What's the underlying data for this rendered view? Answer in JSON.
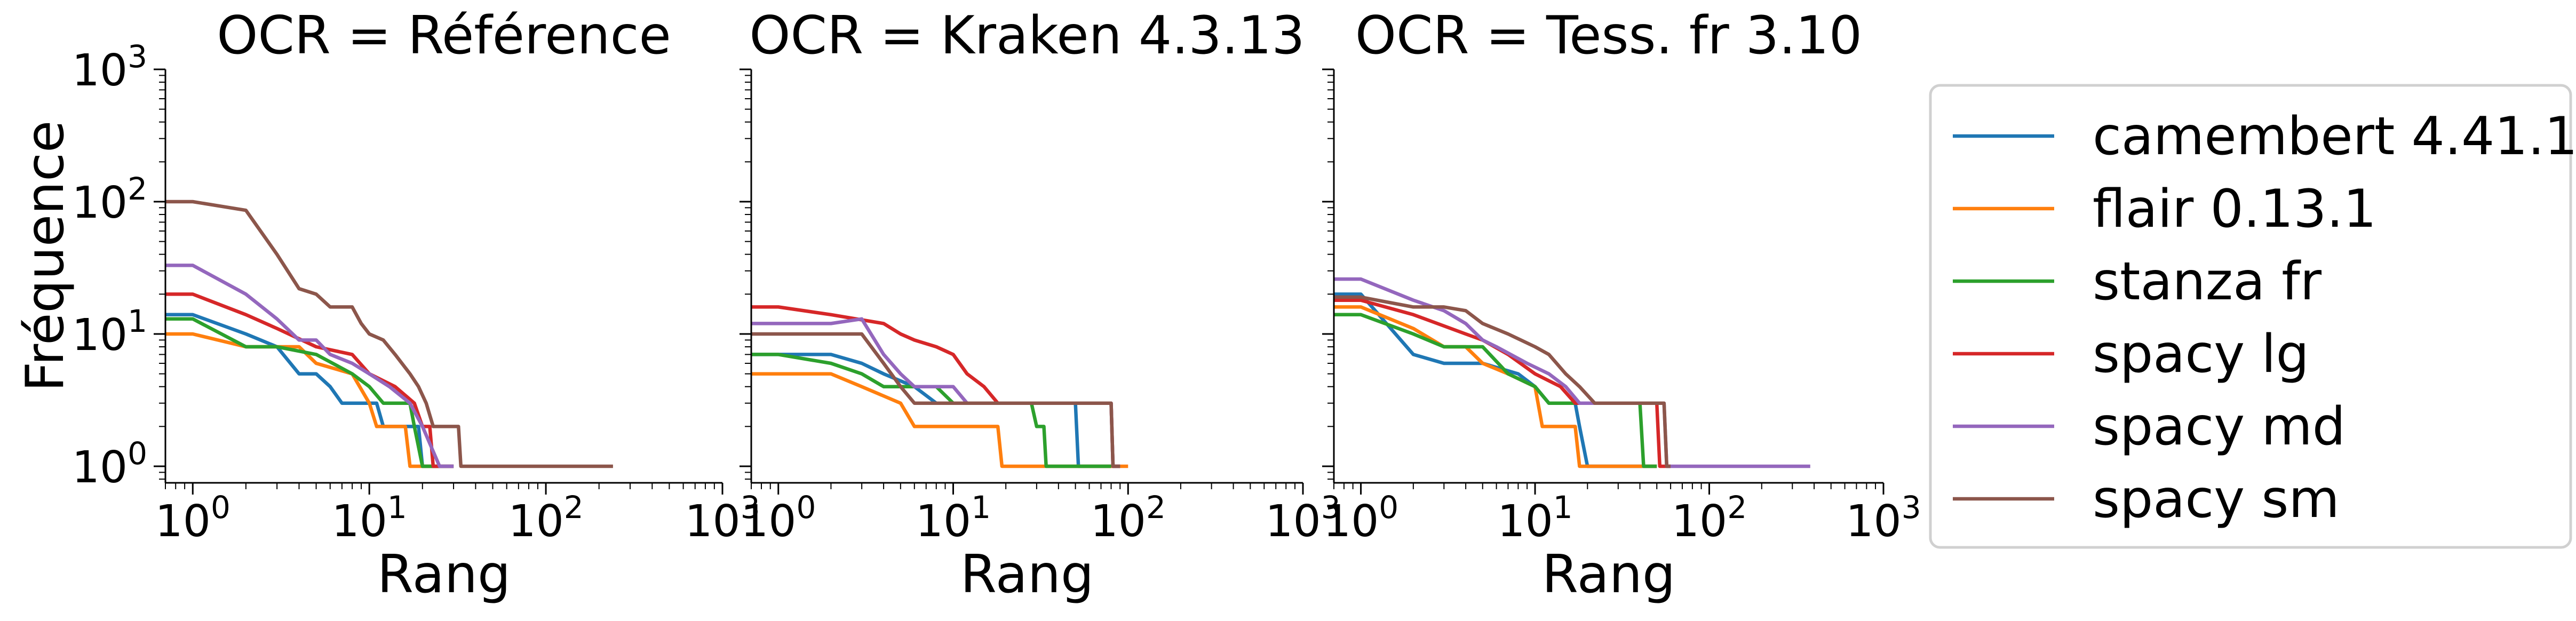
{
  "colors": {
    "camembert 4.41.1": "#1f77b4",
    "flair 0.13.1": "#ff7f0e",
    "stanza fr": "#2ca02c",
    "spacy lg": "#d62728",
    "spacy md": "#9467bd",
    "spacy sm": "#8c564b"
  },
  "ylabel": "Fréquence",
  "legend": {
    "placement": "right",
    "entries": [
      "camembert 4.41.1",
      "flair 0.13.1",
      "stanza fr",
      "spacy lg",
      "spacy md",
      "spacy sm"
    ]
  },
  "chart_data": [
    {
      "type": "line",
      "title": "OCR = Référence",
      "xlabel": "Rang",
      "ylabel": "Fréquence",
      "xscale": "log",
      "yscale": "log",
      "xlim": [
        0.7,
        1000
      ],
      "ylim": [
        0.75,
        1000
      ],
      "x_ticks": [
        "10^0",
        "10^1",
        "10^2",
        "10^3"
      ],
      "y_ticks": [
        "10^0",
        "10^1",
        "10^2",
        "10^3"
      ],
      "series": [
        {
          "name": "camembert 4.41.1",
          "points": [
            [
              0.7,
              14
            ],
            [
              1,
              14
            ],
            [
              2,
              10
            ],
            [
              3,
              8
            ],
            [
              4,
              5
            ],
            [
              5,
              5
            ],
            [
              6,
              4
            ],
            [
              7,
              3
            ],
            [
              10,
              3
            ],
            [
              11,
              3
            ],
            [
              12,
              2
            ],
            [
              19,
              2
            ],
            [
              20,
              1
            ],
            [
              30,
              1
            ]
          ]
        },
        {
          "name": "flair 0.13.1",
          "points": [
            [
              0.7,
              10
            ],
            [
              1,
              10
            ],
            [
              2,
              8
            ],
            [
              4,
              8
            ],
            [
              5,
              6
            ],
            [
              8,
              5
            ],
            [
              10,
              3
            ],
            [
              11,
              2
            ],
            [
              16,
              2
            ],
            [
              17,
              1
            ],
            [
              25,
              1
            ]
          ]
        },
        {
          "name": "stanza fr",
          "points": [
            [
              0.7,
              13
            ],
            [
              1,
              13
            ],
            [
              2,
              8
            ],
            [
              3,
              8
            ],
            [
              5,
              7
            ],
            [
              8,
              5
            ],
            [
              10,
              4
            ],
            [
              12,
              3
            ],
            [
              17,
              3
            ],
            [
              18,
              2
            ],
            [
              20,
              1
            ],
            [
              30,
              1
            ]
          ]
        },
        {
          "name": "spacy lg",
          "points": [
            [
              0.7,
              20
            ],
            [
              1,
              20
            ],
            [
              2,
              14
            ],
            [
              3,
              11
            ],
            [
              5,
              8
            ],
            [
              8,
              7
            ],
            [
              10,
              5
            ],
            [
              14,
              4
            ],
            [
              18,
              3
            ],
            [
              20,
              2
            ],
            [
              22,
              2
            ],
            [
              23,
              1
            ],
            [
              30,
              1
            ]
          ]
        },
        {
          "name": "spacy md",
          "points": [
            [
              0.7,
              33
            ],
            [
              1,
              33
            ],
            [
              2,
              20
            ],
            [
              3,
              13
            ],
            [
              4,
              9
            ],
            [
              5,
              9
            ],
            [
              6,
              7
            ],
            [
              8,
              6
            ],
            [
              10,
              5
            ],
            [
              13,
              4
            ],
            [
              17,
              3
            ],
            [
              20,
              2
            ],
            [
              25,
              1
            ],
            [
              30,
              1
            ]
          ]
        },
        {
          "name": "spacy sm",
          "points": [
            [
              0.7,
              100
            ],
            [
              1,
              100
            ],
            [
              2,
              86
            ],
            [
              3,
              40
            ],
            [
              4,
              22
            ],
            [
              5,
              20
            ],
            [
              6,
              16
            ],
            [
              8,
              16
            ],
            [
              9,
              12
            ],
            [
              10,
              10
            ],
            [
              12,
              9
            ],
            [
              14,
              7
            ],
            [
              17,
              5
            ],
            [
              19,
              4
            ],
            [
              21,
              3
            ],
            [
              23,
              2
            ],
            [
              32,
              2
            ],
            [
              33,
              1
            ],
            [
              240,
              1
            ]
          ]
        }
      ]
    },
    {
      "type": "line",
      "title": "OCR = Kraken 4.3.13",
      "xlabel": "Rang",
      "xscale": "log",
      "yscale": "log",
      "xlim": [
        0.7,
        1000
      ],
      "ylim": [
        0.75,
        1000
      ],
      "x_ticks": [
        "10^0",
        "10^1",
        "10^2",
        "10^3"
      ],
      "series": [
        {
          "name": "camembert 4.41.1",
          "points": [
            [
              0.7,
              7
            ],
            [
              1,
              7
            ],
            [
              2,
              7
            ],
            [
              3,
              6
            ],
            [
              4,
              5
            ],
            [
              6,
              4
            ],
            [
              8,
              3
            ],
            [
              15,
              3
            ],
            [
              50,
              3
            ],
            [
              52,
              1
            ],
            [
              80,
              1
            ]
          ]
        },
        {
          "name": "flair 0.13.1",
          "points": [
            [
              0.7,
              5
            ],
            [
              1,
              5
            ],
            [
              2,
              5
            ],
            [
              3,
              4
            ],
            [
              5,
              3
            ],
            [
              6,
              2
            ],
            [
              18,
              2
            ],
            [
              19,
              1
            ],
            [
              100,
              1
            ]
          ]
        },
        {
          "name": "stanza fr",
          "points": [
            [
              0.7,
              7
            ],
            [
              1,
              7
            ],
            [
              2,
              6
            ],
            [
              3,
              5
            ],
            [
              4,
              4
            ],
            [
              8,
              4
            ],
            [
              10,
              3
            ],
            [
              28,
              3
            ],
            [
              30,
              2
            ],
            [
              33,
              2
            ],
            [
              34,
              1
            ],
            [
              80,
              1
            ]
          ]
        },
        {
          "name": "spacy lg",
          "points": [
            [
              0.7,
              16
            ],
            [
              1,
              16
            ],
            [
              2,
              14
            ],
            [
              4,
              12
            ],
            [
              5,
              10
            ],
            [
              6,
              9
            ],
            [
              8,
              8
            ],
            [
              10,
              7
            ],
            [
              12,
              5
            ],
            [
              15,
              4
            ],
            [
              18,
              3
            ],
            [
              80,
              3
            ],
            [
              82,
              1
            ],
            [
              90,
              1
            ]
          ]
        },
        {
          "name": "spacy md",
          "points": [
            [
              0.7,
              12
            ],
            [
              1,
              12
            ],
            [
              2,
              12
            ],
            [
              3,
              13
            ],
            [
              4,
              7
            ],
            [
              5,
              5
            ],
            [
              6,
              4
            ],
            [
              10,
              4
            ],
            [
              12,
              3
            ],
            [
              80,
              3
            ],
            [
              82,
              1
            ],
            [
              90,
              1
            ]
          ]
        },
        {
          "name": "spacy sm",
          "points": [
            [
              0.7,
              10
            ],
            [
              1,
              10
            ],
            [
              2,
              10
            ],
            [
              3,
              10
            ],
            [
              4,
              6
            ],
            [
              5,
              4
            ],
            [
              6,
              3
            ],
            [
              80,
              3
            ],
            [
              82,
              1
            ],
            [
              90,
              1
            ]
          ]
        }
      ]
    },
    {
      "type": "line",
      "title": "OCR = Tess. fr 3.10",
      "xlabel": "Rang",
      "xscale": "log",
      "yscale": "log",
      "xlim": [
        0.7,
        1000
      ],
      "ylim": [
        0.75,
        1000
      ],
      "x_ticks": [
        "10^0",
        "10^1",
        "10^2",
        "10^3"
      ],
      "series": [
        {
          "name": "camembert 4.41.1",
          "points": [
            [
              0.7,
              20
            ],
            [
              1,
              20
            ],
            [
              2,
              7
            ],
            [
              3,
              6
            ],
            [
              5,
              6
            ],
            [
              8,
              5
            ],
            [
              10,
              4
            ],
            [
              12,
              3
            ],
            [
              17,
              3
            ],
            [
              18,
              2
            ],
            [
              20,
              1
            ],
            [
              50,
              1
            ]
          ]
        },
        {
          "name": "flair 0.13.1",
          "points": [
            [
              0.7,
              16
            ],
            [
              1,
              16
            ],
            [
              2,
              11
            ],
            [
              3,
              8
            ],
            [
              4,
              8
            ],
            [
              5,
              6
            ],
            [
              7,
              5
            ],
            [
              10,
              4
            ],
            [
              11,
              2
            ],
            [
              17,
              2
            ],
            [
              18,
              1
            ],
            [
              50,
              1
            ]
          ]
        },
        {
          "name": "stanza fr",
          "points": [
            [
              0.7,
              14
            ],
            [
              1,
              14
            ],
            [
              2,
              10
            ],
            [
              3,
              8
            ],
            [
              5,
              8
            ],
            [
              7,
              5
            ],
            [
              10,
              4
            ],
            [
              12,
              3
            ],
            [
              40,
              3
            ],
            [
              42,
              1
            ],
            [
              50,
              1
            ]
          ]
        },
        {
          "name": "spacy lg",
          "points": [
            [
              0.7,
              18
            ],
            [
              1,
              18
            ],
            [
              2,
              14
            ],
            [
              4,
              10
            ],
            [
              5,
              9
            ],
            [
              7,
              7
            ],
            [
              10,
              5
            ],
            [
              14,
              4
            ],
            [
              17,
              3
            ],
            [
              50,
              3
            ],
            [
              52,
              1
            ],
            [
              60,
              1
            ]
          ]
        },
        {
          "name": "spacy md",
          "points": [
            [
              0.7,
              26
            ],
            [
              1,
              26
            ],
            [
              2,
              18
            ],
            [
              3,
              15
            ],
            [
              4,
              12
            ],
            [
              5,
              9
            ],
            [
              6,
              8
            ],
            [
              9,
              6
            ],
            [
              12,
              5
            ],
            [
              15,
              4
            ],
            [
              18,
              3
            ],
            [
              55,
              3
            ],
            [
              57,
              1
            ],
            [
              380,
              1
            ]
          ]
        },
        {
          "name": "spacy sm",
          "points": [
            [
              0.7,
              19
            ],
            [
              1,
              19
            ],
            [
              2,
              16
            ],
            [
              3,
              16
            ],
            [
              4,
              15
            ],
            [
              5,
              12
            ],
            [
              7,
              10
            ],
            [
              10,
              8
            ],
            [
              12,
              7
            ],
            [
              15,
              5
            ],
            [
              18,
              4
            ],
            [
              22,
              3
            ],
            [
              55,
              3
            ],
            [
              57,
              1
            ],
            [
              60,
              1
            ]
          ]
        }
      ]
    }
  ]
}
